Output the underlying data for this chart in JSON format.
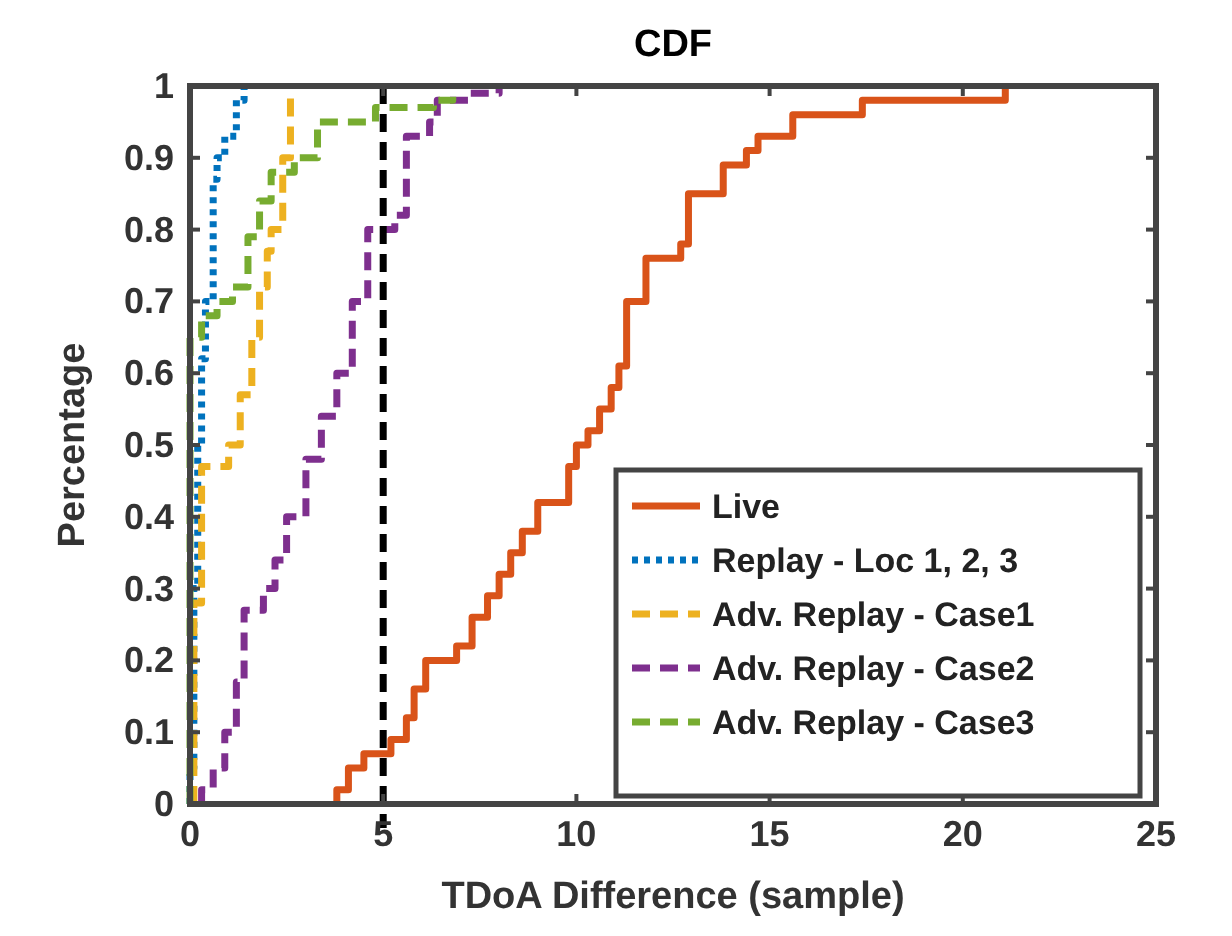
{
  "chart_data": {
    "type": "step",
    "title": "CDF",
    "xlabel": "TDoA Difference (sample)",
    "ylabel": "Percentage",
    "xlim": [
      0,
      25
    ],
    "xticks": [
      0,
      5,
      10,
      15,
      20,
      25
    ],
    "ylim": [
      0,
      1
    ],
    "yticks": [
      0,
      0.1,
      0.2,
      0.3,
      0.4,
      0.5,
      0.6,
      0.7,
      0.8,
      0.9,
      1
    ],
    "grid": false,
    "legend": "bottom right",
    "ref_lines": [
      {
        "axis": "x",
        "value": 5,
        "color": "#000000",
        "line_style": "dashed"
      }
    ],
    "series": [
      {
        "name": "Live",
        "color": "#d95319",
        "line_style": "solid",
        "x": [
          3.8,
          3.8,
          4.1,
          4.5,
          5.2,
          5.6,
          5.8,
          6.1,
          6.9,
          7.3,
          7.7,
          8.0,
          8.3,
          8.6,
          9.0,
          9.8,
          10.0,
          10.3,
          10.6,
          10.9,
          11.1,
          11.3,
          11.8,
          12.7,
          12.9,
          13.8,
          14.4,
          14.7,
          15.6,
          17.4,
          21.1
        ],
        "values": [
          0,
          0.02,
          0.05,
          0.07,
          0.09,
          0.12,
          0.16,
          0.2,
          0.22,
          0.26,
          0.29,
          0.32,
          0.35,
          0.38,
          0.42,
          0.47,
          0.5,
          0.52,
          0.55,
          0.58,
          0.61,
          0.7,
          0.76,
          0.78,
          0.85,
          0.89,
          0.91,
          0.93,
          0.96,
          0.98,
          1
        ]
      },
      {
        "name": "Replay - Loc 1, 2, 3",
        "color": "#0072bd",
        "line_style": "dotted",
        "x": [
          0,
          0,
          0.1,
          0.2,
          0.3,
          0.4,
          0.6,
          0.7,
          0.9,
          1.2,
          1.4
        ],
        "values": [
          0,
          0.05,
          0.3,
          0.5,
          0.62,
          0.7,
          0.87,
          0.9,
          0.93,
          0.98,
          1
        ]
      },
      {
        "name": "Adv. Replay - Case1",
        "color": "#edb120",
        "line_style": "dashed",
        "x": [
          0.1,
          0.1,
          0.3,
          1.0,
          1.3,
          1.6,
          1.8,
          2.0,
          2.1,
          2.4,
          2.6
        ],
        "values": [
          0,
          0.28,
          0.47,
          0.5,
          0.57,
          0.65,
          0.72,
          0.77,
          0.8,
          0.9,
          1
        ]
      },
      {
        "name": "Adv. Replay - Case2",
        "color": "#7e2f8e",
        "line_style": "dashed",
        "x": [
          0.3,
          0.3,
          0.6,
          0.9,
          1.2,
          1.4,
          1.9,
          2.2,
          2.5,
          3.0,
          3.4,
          3.8,
          4.2,
          4.6,
          5.3,
          5.6,
          6.2,
          6.4,
          7.2,
          8.0
        ],
        "values": [
          0,
          0.02,
          0.05,
          0.1,
          0.17,
          0.27,
          0.3,
          0.34,
          0.4,
          0.48,
          0.54,
          0.6,
          0.7,
          0.8,
          0.82,
          0.93,
          0.95,
          0.98,
          0.99,
          1
        ]
      },
      {
        "name": "Adv. Replay - Case3",
        "color": "#77ac30",
        "line_style": "dashed",
        "x": [
          0,
          0,
          0.3,
          0.7,
          1.1,
          1.5,
          1.8,
          2.1,
          2.7,
          3.3,
          4.8,
          6.3,
          6.8
        ],
        "values": [
          0,
          0.65,
          0.68,
          0.7,
          0.72,
          0.79,
          0.84,
          0.88,
          0.9,
          0.95,
          0.97,
          0.98,
          1
        ]
      }
    ]
  }
}
